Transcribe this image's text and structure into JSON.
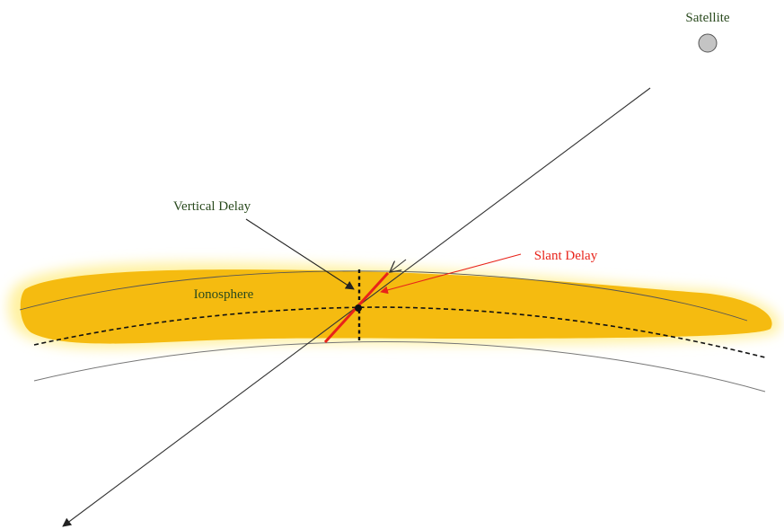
{
  "labels": {
    "satellite": "Satellite",
    "vertical_delay": "Vertical Delay",
    "slant_delay": "Slant Delay",
    "ionosphere": "Ionosphere"
  },
  "colors": {
    "ionosphere_fill": "#f5bb10",
    "ionosphere_glow": "#fff3a0",
    "slant_path": "#e8231a",
    "slant_label": "#e8231a",
    "dark_label": "#2a4a1e",
    "satellite_fill": "#c4c4c4",
    "line": "#333333"
  }
}
